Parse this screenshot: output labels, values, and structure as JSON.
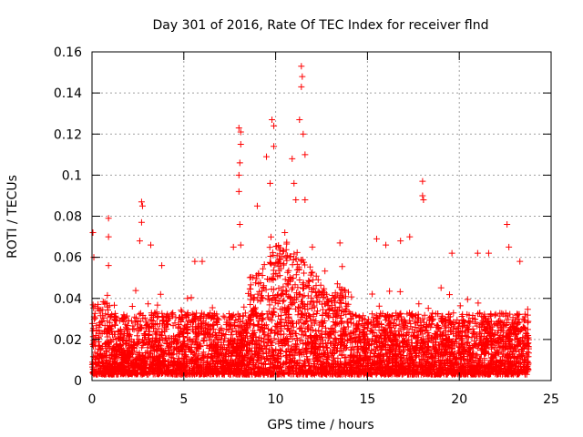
{
  "chart_data": {
    "type": "scatter",
    "title": "Day 301 of 2016, Rate Of TEC Index for receiver flnd",
    "xlabel": "GPS time / hours",
    "ylabel": "ROTI / TECUs",
    "xlim": [
      0,
      25
    ],
    "ylim": [
      0,
      0.16
    ],
    "xticks": [
      0,
      5,
      10,
      15,
      20,
      25
    ],
    "xtick_labels": [
      "0",
      "5",
      "10",
      "15",
      "20",
      "25"
    ],
    "yticks": [
      0,
      0.02,
      0.04,
      0.06,
      0.08,
      0.1,
      0.12,
      0.14,
      0.16
    ],
    "ytick_labels": [
      "0",
      "0.02",
      "0.04",
      "0.06",
      "0.08",
      "0.1",
      "0.12",
      "0.14",
      "0.16"
    ],
    "grid": true,
    "marker": "plus",
    "marker_color": "#ff0000",
    "series": [
      {
        "name": "ROTI",
        "description_note": "dense band of points between 0.003 and ~0.04 TECU across 0-23.8 h; notable peaks listed",
        "peaks": [
          {
            "x": 0.05,
            "y": 0.072
          },
          {
            "x": 0.1,
            "y": 0.06
          },
          {
            "x": 0.9,
            "y": 0.079
          },
          {
            "x": 0.9,
            "y": 0.07
          },
          {
            "x": 0.9,
            "y": 0.056
          },
          {
            "x": 2.7,
            "y": 0.087
          },
          {
            "x": 2.75,
            "y": 0.085
          },
          {
            "x": 2.7,
            "y": 0.077
          },
          {
            "x": 2.6,
            "y": 0.068
          },
          {
            "x": 3.2,
            "y": 0.066
          },
          {
            "x": 3.8,
            "y": 0.056
          },
          {
            "x": 5.6,
            "y": 0.058
          },
          {
            "x": 6.0,
            "y": 0.058
          },
          {
            "x": 7.7,
            "y": 0.065
          },
          {
            "x": 8.0,
            "y": 0.123
          },
          {
            "x": 8.1,
            "y": 0.121
          },
          {
            "x": 8.1,
            "y": 0.115
          },
          {
            "x": 8.05,
            "y": 0.106
          },
          {
            "x": 8.0,
            "y": 0.1
          },
          {
            "x": 8.0,
            "y": 0.092
          },
          {
            "x": 8.05,
            "y": 0.076
          },
          {
            "x": 8.1,
            "y": 0.066
          },
          {
            "x": 9.0,
            "y": 0.085
          },
          {
            "x": 9.5,
            "y": 0.109
          },
          {
            "x": 9.7,
            "y": 0.096
          },
          {
            "x": 9.8,
            "y": 0.127
          },
          {
            "x": 9.9,
            "y": 0.124
          },
          {
            "x": 9.9,
            "y": 0.114
          },
          {
            "x": 10.5,
            "y": 0.072
          },
          {
            "x": 10.9,
            "y": 0.108
          },
          {
            "x": 11.0,
            "y": 0.096
          },
          {
            "x": 11.1,
            "y": 0.088
          },
          {
            "x": 11.3,
            "y": 0.127
          },
          {
            "x": 11.4,
            "y": 0.153
          },
          {
            "x": 11.45,
            "y": 0.148
          },
          {
            "x": 11.4,
            "y": 0.143
          },
          {
            "x": 11.5,
            "y": 0.12
          },
          {
            "x": 11.6,
            "y": 0.11
          },
          {
            "x": 11.6,
            "y": 0.088
          },
          {
            "x": 12.0,
            "y": 0.065
          },
          {
            "x": 13.5,
            "y": 0.067
          },
          {
            "x": 15.5,
            "y": 0.069
          },
          {
            "x": 16.0,
            "y": 0.066
          },
          {
            "x": 16.8,
            "y": 0.068
          },
          {
            "x": 17.3,
            "y": 0.07
          },
          {
            "x": 18.0,
            "y": 0.097
          },
          {
            "x": 18.0,
            "y": 0.09
          },
          {
            "x": 18.05,
            "y": 0.088
          },
          {
            "x": 19.6,
            "y": 0.062
          },
          {
            "x": 21.0,
            "y": 0.062
          },
          {
            "x": 21.6,
            "y": 0.062
          },
          {
            "x": 22.6,
            "y": 0.076
          },
          {
            "x": 22.7,
            "y": 0.065
          },
          {
            "x": 23.3,
            "y": 0.058
          }
        ]
      }
    ]
  }
}
